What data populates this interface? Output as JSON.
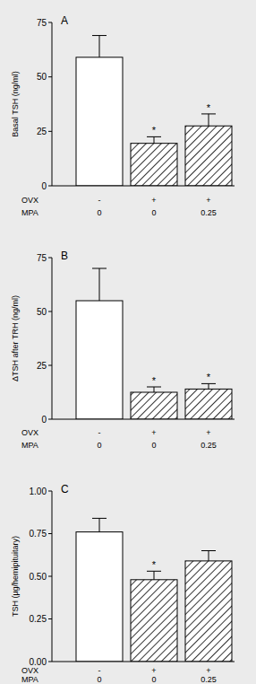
{
  "chart_data": [
    {
      "type": "bar",
      "title": "A",
      "y_label": "Basal TSH (ng/ml)",
      "category_rows": [
        {
          "name": "OVX",
          "labels": [
            "-",
            "+",
            "+"
          ]
        },
        {
          "name": "MPA",
          "labels": [
            "0",
            "0",
            "0.25"
          ]
        }
      ],
      "values": [
        59,
        19.5,
        27.5
      ],
      "errors": [
        10,
        3,
        5.5
      ],
      "annotations": [
        null,
        "*",
        "*"
      ],
      "colors": [
        "#ffffff",
        "#000000",
        "#000000"
      ],
      "ylim": [
        0,
        75
      ],
      "yticks": [
        0,
        25,
        50,
        75
      ]
    },
    {
      "type": "bar",
      "title": "B",
      "y_label": "ΔTSH after TRH (ng/ml)",
      "category_rows": [
        {
          "name": "OVX",
          "labels": [
            "-",
            "+",
            "+"
          ]
        },
        {
          "name": "MPA",
          "labels": [
            "0",
            "0",
            "0.25"
          ]
        }
      ],
      "values": [
        55,
        12.5,
        14
      ],
      "errors": [
        15,
        2.5,
        2.5
      ],
      "annotations": [
        null,
        "*",
        "*"
      ],
      "colors": [
        "#ffffff",
        "#000000",
        "#000000"
      ],
      "ylim": [
        0,
        75
      ],
      "yticks": [
        0,
        25,
        50,
        75
      ]
    },
    {
      "type": "bar",
      "title": "C",
      "y_label": "TSH (µg/hemipituitary)",
      "category_rows": [
        {
          "name": "OVX",
          "labels": [
            "-",
            "+",
            "+"
          ]
        },
        {
          "name": "MPA",
          "labels": [
            "0",
            "0",
            "0.25"
          ]
        }
      ],
      "values": [
        0.76,
        0.48,
        0.59
      ],
      "errors": [
        0.08,
        0.05,
        0.06
      ],
      "annotations": [
        null,
        "*",
        null
      ],
      "colors": [
        "#ffffff",
        "#000000",
        "#000000"
      ],
      "ylim": [
        0,
        1
      ],
      "yticks": [
        {
          "value": 0,
          "label": "0.00"
        },
        {
          "value": 0.25,
          "label": "0.25"
        },
        {
          "value": 0.5,
          "label": "0.50"
        },
        {
          "value": 0.75,
          "label": "0.75"
        },
        {
          "value": 1,
          "label": "1.00"
        }
      ]
    }
  ]
}
